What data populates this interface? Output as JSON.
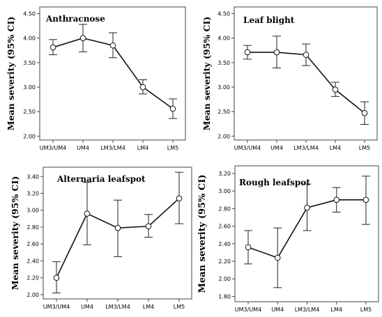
{
  "chart_data": [
    {
      "type": "line",
      "title": "Anthracnose",
      "ylabel": "Mean severity (95% CI)",
      "xlabel": "",
      "categories": [
        "UM3/UM4",
        "UM4",
        "LM3/LM4",
        "LM4",
        "LM5"
      ],
      "yticks": [
        "2.00",
        "2.50",
        "3.00",
        "3.50",
        "4.00",
        "4.50"
      ],
      "ylim": [
        1.92,
        4.55
      ],
      "means": [
        3.81,
        4.0,
        3.85,
        3.0,
        2.56
      ],
      "ci_low": [
        3.66,
        3.72,
        3.6,
        2.86,
        2.36
      ],
      "ci_high": [
        3.97,
        4.28,
        4.11,
        3.15,
        2.76
      ],
      "grid": false
    },
    {
      "type": "line",
      "title": "Leaf blight",
      "ylabel": "Mean severity (95% CI)",
      "xlabel": "",
      "categories": [
        "UM3/UM4",
        "UM4",
        "LM3/LM4",
        "LM4",
        "LM5"
      ],
      "yticks": [
        "2.00",
        "2.50",
        "3.00",
        "3.50",
        "4.00",
        "4.50"
      ],
      "ylim": [
        1.92,
        4.55
      ],
      "means": [
        3.71,
        3.71,
        3.66,
        2.95,
        2.47
      ],
      "ci_low": [
        3.57,
        3.39,
        3.44,
        2.81,
        2.24
      ],
      "ci_high": [
        3.85,
        4.04,
        3.88,
        3.1,
        2.7
      ],
      "grid": false
    },
    {
      "type": "line",
      "title": "Alternaria leafspot",
      "ylabel": "Mean severity (95% CI)",
      "xlabel": "",
      "categories": [
        "UM3/UM4",
        "UM4",
        "LM3/LM4",
        "LM4",
        "LM5"
      ],
      "yticks": [
        "2.00",
        "2.20",
        "2.40",
        "2.60",
        "2.80",
        "3.00",
        "3.20",
        "3.40"
      ],
      "ylim": [
        1.95,
        3.46
      ],
      "means": [
        2.2,
        2.96,
        2.79,
        2.81,
        3.14
      ],
      "ci_low": [
        2.02,
        2.59,
        2.45,
        2.68,
        2.84
      ],
      "ci_high": [
        2.39,
        3.33,
        3.12,
        2.95,
        3.45
      ],
      "grid": false
    },
    {
      "type": "line",
      "title": "Rough leafspot",
      "ylabel": "Mean severity (95% CI)",
      "xlabel": "",
      "categories": [
        "UM3/UM4",
        "UM4",
        "LM3/LM4",
        "LM4",
        "LM5"
      ],
      "yticks": [
        "1.80",
        "2.00",
        "2.20",
        "2.40",
        "2.60",
        "2.80",
        "3.00",
        "3.20"
      ],
      "ylim": [
        1.74,
        3.24
      ],
      "means": [
        2.36,
        2.24,
        2.81,
        2.9,
        2.9
      ],
      "ci_low": [
        2.17,
        1.9,
        2.55,
        2.76,
        2.62
      ],
      "ci_high": [
        2.55,
        2.58,
        3.08,
        3.04,
        3.17
      ],
      "grid": false
    }
  ]
}
